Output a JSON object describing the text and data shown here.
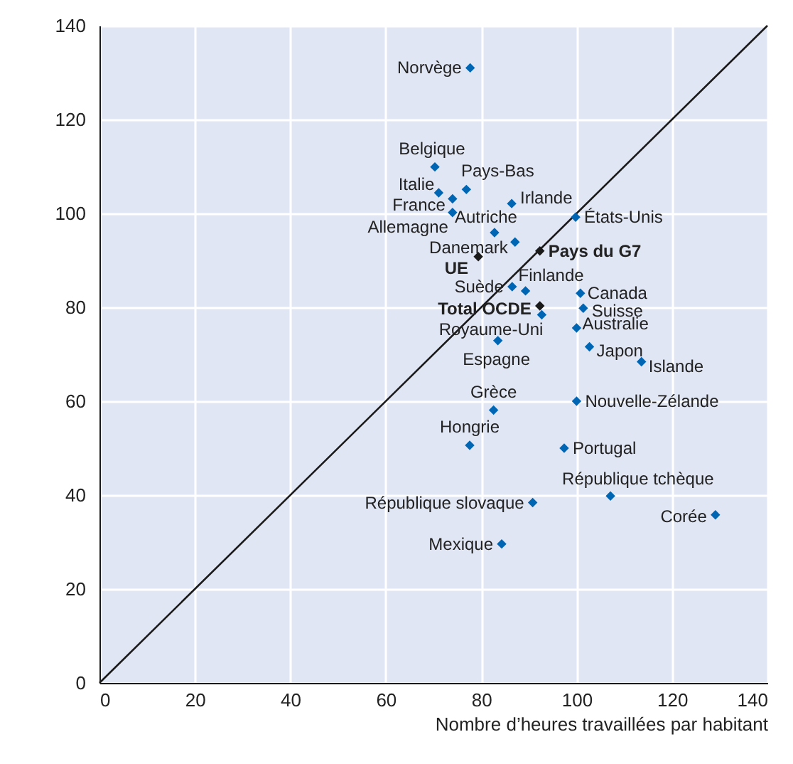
{
  "chart_data": {
    "type": "scatter",
    "xlabel": "Nombre d’heures travaillées par habitant",
    "xlim": [
      0,
      140
    ],
    "ylim": [
      0,
      140
    ],
    "xticks": [
      0,
      20,
      40,
      60,
      80,
      100,
      120,
      140
    ],
    "yticks": [
      0,
      20,
      40,
      60,
      80,
      100,
      120,
      140
    ],
    "grid": true,
    "marker": "diamond",
    "series": [
      {
        "type": "line",
        "color": "#1a1a1a",
        "x": [
          0,
          140
        ],
        "values": [
          0,
          140
        ],
        "marker": "none",
        "line_style": "solid"
      },
      {
        "color": "#0066b3",
        "x": [
          77.7,
          70.3,
          76.9,
          71.1,
          74.0,
          74.0,
          86.4,
          99.8,
          82.8,
          87.1,
          86.5,
          89.3,
          100.8,
          92.7,
          101.4,
          100.0,
          83.5,
          102.7,
          113.6,
          82.6,
          100.0,
          77.6,
          97.4,
          107.1,
          90.8,
          129.1,
          84.3
        ],
        "values": [
          131.0,
          109.9,
          105.1,
          104.4,
          103.1,
          100.2,
          102.1,
          99.2,
          95.9,
          93.9,
          84.4,
          83.5,
          83.0,
          78.4,
          79.8,
          75.6,
          72.9,
          71.6,
          68.4,
          58.1,
          60.0,
          50.6,
          50.0,
          39.8,
          38.4,
          35.8,
          29.6
        ]
      },
      {
        "color": "#1a1a1a",
        "x": [
          79.4,
          92.3,
          92.3
        ],
        "values": [
          90.8,
          92.0,
          80.3
        ]
      }
    ],
    "annotations": [
      {
        "text": "Norvège",
        "x": 77.7,
        "y": 131.0
      },
      {
        "text": "Belgique",
        "x": 70.3,
        "y": 109.9
      },
      {
        "text": "Pays-Bas",
        "x": 76.9,
        "y": 105.1
      },
      {
        "text": "Italie",
        "x": 71.1,
        "y": 104.4
      },
      {
        "text": "France",
        "x": 74.0,
        "y": 103.1
      },
      {
        "text": "Allemagne",
        "x": 74.0,
        "y": 100.2
      },
      {
        "text": "Irlande",
        "x": 86.4,
        "y": 102.1
      },
      {
        "text": "États-Unis",
        "x": 99.8,
        "y": 99.2
      },
      {
        "text": "Autriche",
        "x": 82.8,
        "y": 95.9
      },
      {
        "text": "Danemark",
        "x": 87.1,
        "y": 93.9
      },
      {
        "text": "Suède",
        "x": 86.5,
        "y": 84.4
      },
      {
        "text": "Finlande",
        "x": 89.3,
        "y": 83.5
      },
      {
        "text": "Canada",
        "x": 100.8,
        "y": 83.0
      },
      {
        "text": "Royaume-Uni",
        "x": 92.7,
        "y": 78.4
      },
      {
        "text": "Suisse",
        "x": 101.4,
        "y": 79.8
      },
      {
        "text": "Australie",
        "x": 100.0,
        "y": 75.6
      },
      {
        "text": "Espagne",
        "x": 83.5,
        "y": 72.9
      },
      {
        "text": "Japon",
        "x": 102.7,
        "y": 71.6
      },
      {
        "text": "Islande",
        "x": 113.6,
        "y": 68.4
      },
      {
        "text": "Grèce",
        "x": 82.6,
        "y": 58.1
      },
      {
        "text": "Nouvelle-Zélande",
        "x": 100.0,
        "y": 60.0
      },
      {
        "text": "Hongrie",
        "x": 77.6,
        "y": 50.6
      },
      {
        "text": "Portugal",
        "x": 97.4,
        "y": 50.0
      },
      {
        "text": "République tchèque",
        "x": 107.1,
        "y": 39.8
      },
      {
        "text": "République slovaque",
        "x": 90.8,
        "y": 38.4
      },
      {
        "text": "Corée",
        "x": 129.1,
        "y": 35.8
      },
      {
        "text": "Mexique",
        "x": 84.3,
        "y": 29.6
      },
      {
        "text": "UE",
        "x": 79.4,
        "y": 90.8
      },
      {
        "text": "Pays du G7",
        "x": 92.3,
        "y": 92.0
      },
      {
        "text": "Total OCDE",
        "x": 92.3,
        "y": 80.3
      }
    ]
  }
}
